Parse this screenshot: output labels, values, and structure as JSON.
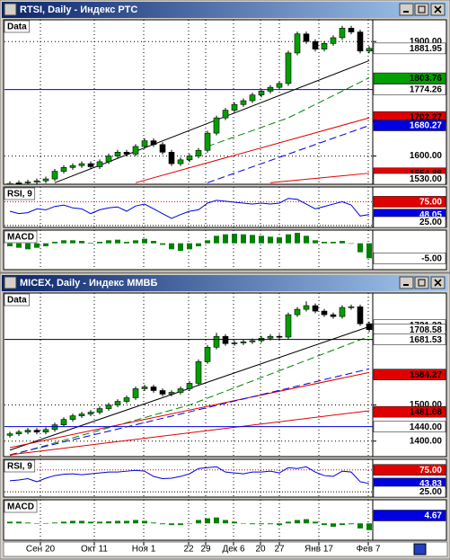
{
  "windows": [
    {
      "title": "RTSI, Daily - Индекс РТС",
      "price": {
        "label": "Data",
        "ylim": [
          1526,
          1957
        ],
        "yticks": [
          {
            "value": 1900,
            "label": "1900.00"
          },
          {
            "value": 1600,
            "label": "1600.00"
          }
        ],
        "candles": [
          [
            1524,
            1534,
            1518,
            1528
          ],
          [
            1528,
            1536,
            1522,
            1530
          ],
          [
            1530,
            1538,
            1524,
            1532
          ],
          [
            1532,
            1541,
            1526,
            1535
          ],
          [
            1535,
            1546,
            1529,
            1540
          ],
          [
            1540,
            1566,
            1534,
            1560
          ],
          [
            1560,
            1576,
            1554,
            1570
          ],
          [
            1570,
            1581,
            1564,
            1575
          ],
          [
            1575,
            1586,
            1569,
            1580
          ],
          [
            1580,
            1586,
            1566,
            1572
          ],
          [
            1572,
            1591,
            1566,
            1585
          ],
          [
            1585,
            1606,
            1579,
            1600
          ],
          [
            1600,
            1616,
            1594,
            1610
          ],
          [
            1610,
            1616,
            1599,
            1605
          ],
          [
            1605,
            1631,
            1599,
            1625
          ],
          [
            1625,
            1646,
            1619,
            1640
          ],
          [
            1640,
            1646,
            1624,
            1630
          ],
          [
            1630,
            1636,
            1604,
            1610
          ],
          [
            1610,
            1616,
            1574,
            1580
          ],
          [
            1580,
            1596,
            1574,
            1590
          ],
          [
            1590,
            1606,
            1584,
            1600
          ],
          [
            1600,
            1621,
            1594,
            1615
          ],
          [
            1615,
            1666,
            1609,
            1660
          ],
          [
            1660,
            1706,
            1654,
            1700
          ],
          [
            1700,
            1726,
            1694,
            1720
          ],
          [
            1720,
            1741,
            1714,
            1735
          ],
          [
            1735,
            1751,
            1729,
            1745
          ],
          [
            1745,
            1766,
            1739,
            1760
          ],
          [
            1760,
            1776,
            1754,
            1770
          ],
          [
            1770,
            1786,
            1764,
            1780
          ],
          [
            1780,
            1796,
            1774,
            1790
          ],
          [
            1790,
            1876,
            1784,
            1870
          ],
          [
            1870,
            1926,
            1864,
            1920
          ],
          [
            1920,
            1926,
            1894,
            1900
          ],
          [
            1900,
            1906,
            1874,
            1880
          ],
          [
            1880,
            1901,
            1874,
            1895
          ],
          [
            1895,
            1916,
            1889,
            1910
          ],
          [
            1910,
            1941,
            1904,
            1935
          ],
          [
            1935,
            1941,
            1919,
            1925
          ],
          [
            1925,
            1931,
            1869,
            1875
          ],
          [
            1875,
            1888,
            1869,
            1881.95
          ]
        ],
        "lines": [
          {
            "color": "#000000",
            "dash": false,
            "x": [
              5,
              40
            ],
            "values": [
              1530,
              1850
            ]
          },
          {
            "color": "#008000",
            "dash": true,
            "x": [
              22,
              31,
              40
            ],
            "values": [
              1625,
              1700,
              1805
            ]
          },
          {
            "color": "#e00000",
            "dash": false,
            "x": [
              14,
              40
            ],
            "values": [
              1530,
              1700
            ]
          },
          {
            "color": "#0000e0",
            "dash": true,
            "x": [
              22,
              40
            ],
            "values": [
              1530,
              1680
            ]
          },
          {
            "color": "#e00000",
            "dash": false,
            "x": [
              29,
              40
            ],
            "values": [
              1530,
              1555
            ]
          }
        ],
        "price_labels": [
          {
            "value": 1881.95,
            "label": "1881.95",
            "bg": "#ffffff",
            "fg": "#000000"
          },
          {
            "value": 1803.76,
            "label": "1803.76",
            "bg": "#00a000",
            "fg": "#000000"
          },
          {
            "value": 1774.26,
            "label": "1774.26",
            "bg": "#ffffff",
            "fg": "#000000",
            "line": "#0000e0"
          },
          {
            "value": 1702.27,
            "label": "1702.27",
            "bg": "#e00000",
            "fg": "#000000"
          },
          {
            "value": 1680.27,
            "label": "1680.27",
            "bg": "#0000e0",
            "fg": "#ffffff"
          },
          {
            "value": 1554.86,
            "label": "1554.86",
            "bg": "#e00000",
            "fg": "#000000"
          },
          {
            "value": 1530,
            "label": "1530.00",
            "bg": "#ffffff",
            "fg": "#000000"
          }
        ]
      },
      "rsi": {
        "label": "RSI, 9",
        "ylim": [
          21,
          106
        ],
        "color": "#0000e0",
        "values": [
          55,
          50,
          52,
          60,
          58,
          65,
          68,
          62,
          60,
          50,
          58,
          62,
          64,
          55,
          66,
          70,
          60,
          50,
          40,
          48,
          55,
          58,
          72,
          78,
          76,
          74,
          72,
          70,
          72,
          70,
          72,
          82,
          80,
          70,
          60,
          65,
          70,
          75,
          68,
          45,
          48.05
        ],
        "price_labels": [
          {
            "value": 75,
            "label": "75.00",
            "bg": "#e00000",
            "fg": "#ffffff",
            "line": "#e00000"
          },
          {
            "value": 48.05,
            "label": "48.05",
            "bg": "#0000e0",
            "fg": "#ffffff"
          },
          {
            "value": 25,
            "label": "25.00",
            "bg": "#ffffff",
            "fg": "#000000",
            "line": "#000000"
          }
        ]
      },
      "macd": {
        "label": "MACD",
        "ylim": [
          -8.8,
          4.4
        ],
        "color": "#008000",
        "histogram": [
          -1,
          -1.5,
          -2,
          -1.5,
          -1,
          0.5,
          1,
          1,
          0.8,
          0.2,
          0.5,
          1,
          1.2,
          0.5,
          1,
          1.5,
          0.8,
          -0.5,
          -2,
          -2.5,
          -2,
          -1,
          1,
          2.5,
          3,
          3.2,
          3,
          2.8,
          2.5,
          2.2,
          2,
          3,
          3.5,
          2.5,
          1,
          0.5,
          0.5,
          0.8,
          0,
          -3,
          -5
        ],
        "price_labels": [
          {
            "value": -5,
            "label": "-5.00",
            "bg": "#ffffff",
            "fg": "#000000"
          }
        ]
      }
    },
    {
      "title": "MICEX, Daily - Индекс ММВБ",
      "price": {
        "label": "Data",
        "ylim": [
          1357,
          1810
        ],
        "yticks": [
          {
            "value": 1500,
            "label": "1500.00"
          },
          {
            "value": 1400,
            "label": "1400.00"
          }
        ],
        "candles": [
          [
            1416,
            1426,
            1410,
            1420
          ],
          [
            1420,
            1431,
            1414,
            1425
          ],
          [
            1425,
            1436,
            1419,
            1430
          ],
          [
            1430,
            1436,
            1419,
            1425
          ],
          [
            1425,
            1438,
            1419,
            1432
          ],
          [
            1432,
            1451,
            1426,
            1445
          ],
          [
            1445,
            1466,
            1439,
            1460
          ],
          [
            1460,
            1476,
            1454,
            1470
          ],
          [
            1470,
            1481,
            1464,
            1475
          ],
          [
            1475,
            1486,
            1469,
            1480
          ],
          [
            1480,
            1496,
            1474,
            1490
          ],
          [
            1490,
            1506,
            1484,
            1500
          ],
          [
            1500,
            1516,
            1494,
            1510
          ],
          [
            1510,
            1526,
            1504,
            1520
          ],
          [
            1520,
            1551,
            1514,
            1545
          ],
          [
            1545,
            1556,
            1539,
            1550
          ],
          [
            1550,
            1556,
            1534,
            1540
          ],
          [
            1540,
            1546,
            1524,
            1530
          ],
          [
            1530,
            1541,
            1524,
            1535
          ],
          [
            1535,
            1551,
            1529,
            1545
          ],
          [
            1545,
            1566,
            1539,
            1560
          ],
          [
            1560,
            1626,
            1554,
            1620
          ],
          [
            1620,
            1666,
            1614,
            1660
          ],
          [
            1660,
            1700,
            1654,
            1690
          ],
          [
            1690,
            1696,
            1664,
            1670
          ],
          [
            1670,
            1678,
            1664,
            1672
          ],
          [
            1672,
            1681,
            1666,
            1675
          ],
          [
            1675,
            1684,
            1669,
            1678
          ],
          [
            1678,
            1691,
            1672,
            1685
          ],
          [
            1685,
            1696,
            1679,
            1690
          ],
          [
            1690,
            1696,
            1682,
            1688
          ],
          [
            1688,
            1756,
            1682,
            1750
          ],
          [
            1750,
            1771,
            1744,
            1765
          ],
          [
            1765,
            1787,
            1759,
            1775
          ],
          [
            1775,
            1781,
            1754,
            1760
          ],
          [
            1760,
            1766,
            1744,
            1750
          ],
          [
            1750,
            1756,
            1739,
            1745
          ],
          [
            1745,
            1776,
            1739,
            1770
          ],
          [
            1770,
            1778,
            1764,
            1772
          ],
          [
            1772,
            1778,
            1719,
            1725
          ],
          [
            1725,
            1731,
            1702,
            1708.58
          ]
        ],
        "lines": [
          {
            "color": "#000000",
            "dash": false,
            "x": [
              0,
              40
            ],
            "values": [
              1375,
              1717
            ]
          },
          {
            "color": "#008000",
            "dash": true,
            "x": [
              0,
              20,
              40
            ],
            "values": [
              1360,
              1500,
              1690
            ]
          },
          {
            "color": "#e00000",
            "dash": false,
            "x": [
              0,
              40
            ],
            "values": [
              1382,
              1590
            ]
          },
          {
            "color": "#0000e0",
            "dash": true,
            "x": [
              0,
              40
            ],
            "values": [
              1362,
              1600
            ]
          },
          {
            "color": "#e00000",
            "dash": false,
            "x": [
              0,
              40
            ],
            "values": [
              1362,
              1484
            ]
          }
        ],
        "price_labels": [
          {
            "value": 1721.33,
            "label": "1721.33",
            "bg": "#ffffff",
            "fg": "#000000"
          },
          {
            "value": 1708.58,
            "label": "1708.58",
            "bg": "#ffffff",
            "fg": "#000000"
          },
          {
            "value": 1681.53,
            "label": "1681.53",
            "bg": "#ffffff",
            "fg": "#000000",
            "line": "#000000"
          },
          {
            "value": 1584.27,
            "label": "1584.27",
            "bg": "#e00000",
            "fg": "#000000"
          },
          {
            "value": 1481.08,
            "label": "1481.08",
            "bg": "#e00000",
            "fg": "#000000"
          },
          {
            "value": 1440,
            "label": "1440.00",
            "bg": "#ffffff",
            "fg": "#000000",
            "line": "#0000e0"
          }
        ]
      },
      "rsi": {
        "label": "RSI, 9",
        "ylim": [
          13,
          99
        ],
        "color": "#0000e0",
        "values": [
          50,
          52,
          55,
          48,
          56,
          62,
          65,
          66,
          64,
          66,
          68,
          70,
          70,
          72,
          74,
          72,
          60,
          55,
          56,
          60,
          66,
          78,
          80,
          82,
          70,
          68,
          66,
          70,
          70,
          72,
          68,
          80,
          78,
          82,
          70,
          62,
          60,
          72,
          70,
          48,
          43.83
        ],
        "price_labels": [
          {
            "value": 75,
            "label": "75.00",
            "bg": "#e00000",
            "fg": "#ffffff",
            "line": "#e00000"
          },
          {
            "value": 43.83,
            "label": "43.83",
            "bg": "#0000e0",
            "fg": "#ffffff"
          },
          {
            "value": 25,
            "label": "25.00",
            "bg": "#ffffff",
            "fg": "#000000",
            "line": "#000000"
          }
        ]
      },
      "macd": {
        "label": "MACD",
        "ylim": [
          -10,
          14
        ],
        "color": "#008000",
        "histogram": [
          1,
          1,
          0.5,
          0,
          0,
          0.5,
          1,
          1.5,
          1.5,
          1,
          1,
          1.2,
          1.5,
          1.5,
          2,
          1.5,
          0.5,
          -0.5,
          -1,
          -1,
          0,
          2,
          3,
          3.5,
          2,
          1,
          0,
          -0.5,
          -0.5,
          -0.5,
          -1,
          1,
          2,
          2.5,
          1,
          -1,
          -2,
          -1,
          -0.5,
          -3,
          -4
        ],
        "price_labels": [
          {
            "value": 4.67,
            "label": "4.67",
            "bg": "#0000e0",
            "fg": "#ffffff"
          }
        ]
      }
    }
  ],
  "date_axis": [
    "Сен 20",
    "Окт 11",
    "Ноя 1",
    "22",
    "29",
    "Дек 6",
    "20",
    "27",
    "Янв 17",
    "Фев 7"
  ]
}
